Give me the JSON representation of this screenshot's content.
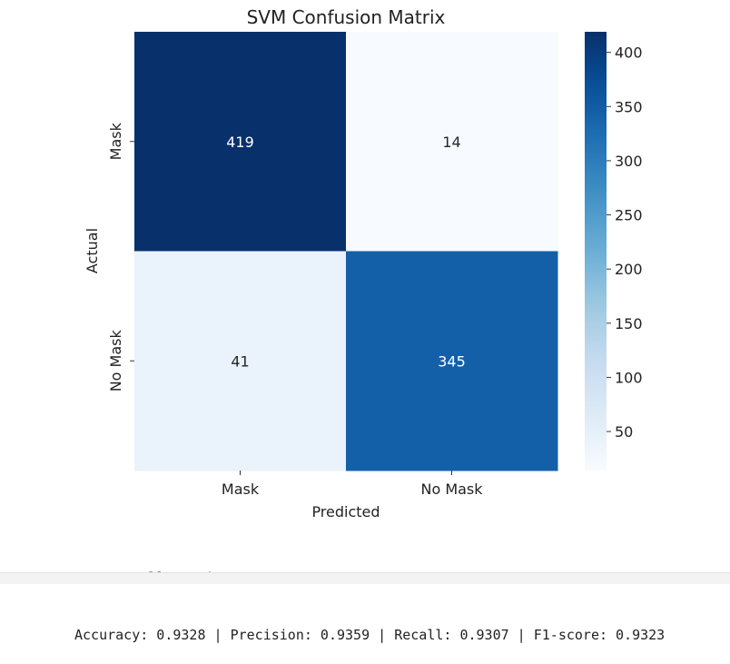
{
  "chart_data": {
    "type": "heatmap",
    "title": "SVM Confusion Matrix",
    "xlabel": "Predicted",
    "ylabel": "Actual",
    "x_categories": [
      "Mask",
      "No Mask"
    ],
    "y_categories": [
      "Mask",
      "No Mask"
    ],
    "matrix": [
      [
        419,
        14
      ],
      [
        41,
        345
      ]
    ],
    "colormap": "Blues",
    "colorbar": {
      "ticks": [
        50,
        100,
        150,
        200,
        250,
        300,
        350,
        400
      ],
      "range": [
        14,
        419
      ]
    },
    "colors": {
      "low": "#f7fbff",
      "high": "#08306b"
    }
  },
  "metrics": {
    "heading": "SVM Overall Metrics:",
    "line": "Accuracy: 0.9328 | Precision: 0.9359 | Recall: 0.9307 | F1-score: 0.9323"
  }
}
